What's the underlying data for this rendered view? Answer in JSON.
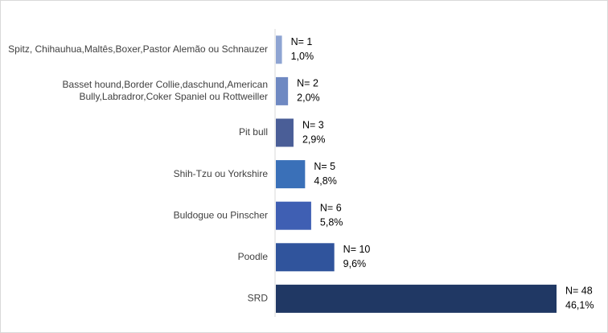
{
  "chart_data": {
    "type": "bar",
    "orientation": "horizontal",
    "title": "",
    "xlabel": "",
    "ylabel": "",
    "categories": [
      [
        "Spitz, Chihauhua,Maltês,Boxer,Pastor Alemão ou Schnauzer"
      ],
      [
        "Basset hound,Border Collie,daschund,American",
        "Bully,Labradror,Coker Spaniel ou Rottweiller"
      ],
      [
        "Pit bull"
      ],
      [
        "Shih-Tzu ou Yorkshire"
      ],
      [
        "Buldogue ou Pinscher"
      ],
      [
        "Poodle"
      ],
      [
        "SRD"
      ]
    ],
    "values": [
      1.0,
      2.0,
      2.9,
      4.8,
      5.8,
      9.6,
      46.1
    ],
    "counts": [
      1,
      2,
      3,
      5,
      6,
      10,
      48
    ],
    "count_labels": [
      "N= 1",
      "N= 2",
      "N= 3",
      "N= 5",
      "N= 6",
      "N= 10",
      "N= 48"
    ],
    "percent_labels": [
      "1,0%",
      "2,0%",
      "2,9%",
      "4,8%",
      "5,8%",
      "9,6%",
      "46,1%"
    ],
    "xlim": [
      0,
      46.1
    ],
    "grid": false,
    "legend": "none",
    "bar_colors": [
      "#8EA4D2",
      "#6F89C2",
      "#4A5E97",
      "#3A70B8",
      "#3F5FB3",
      "#30549C",
      "#203864"
    ],
    "axis_color": "#d9d9d9"
  }
}
